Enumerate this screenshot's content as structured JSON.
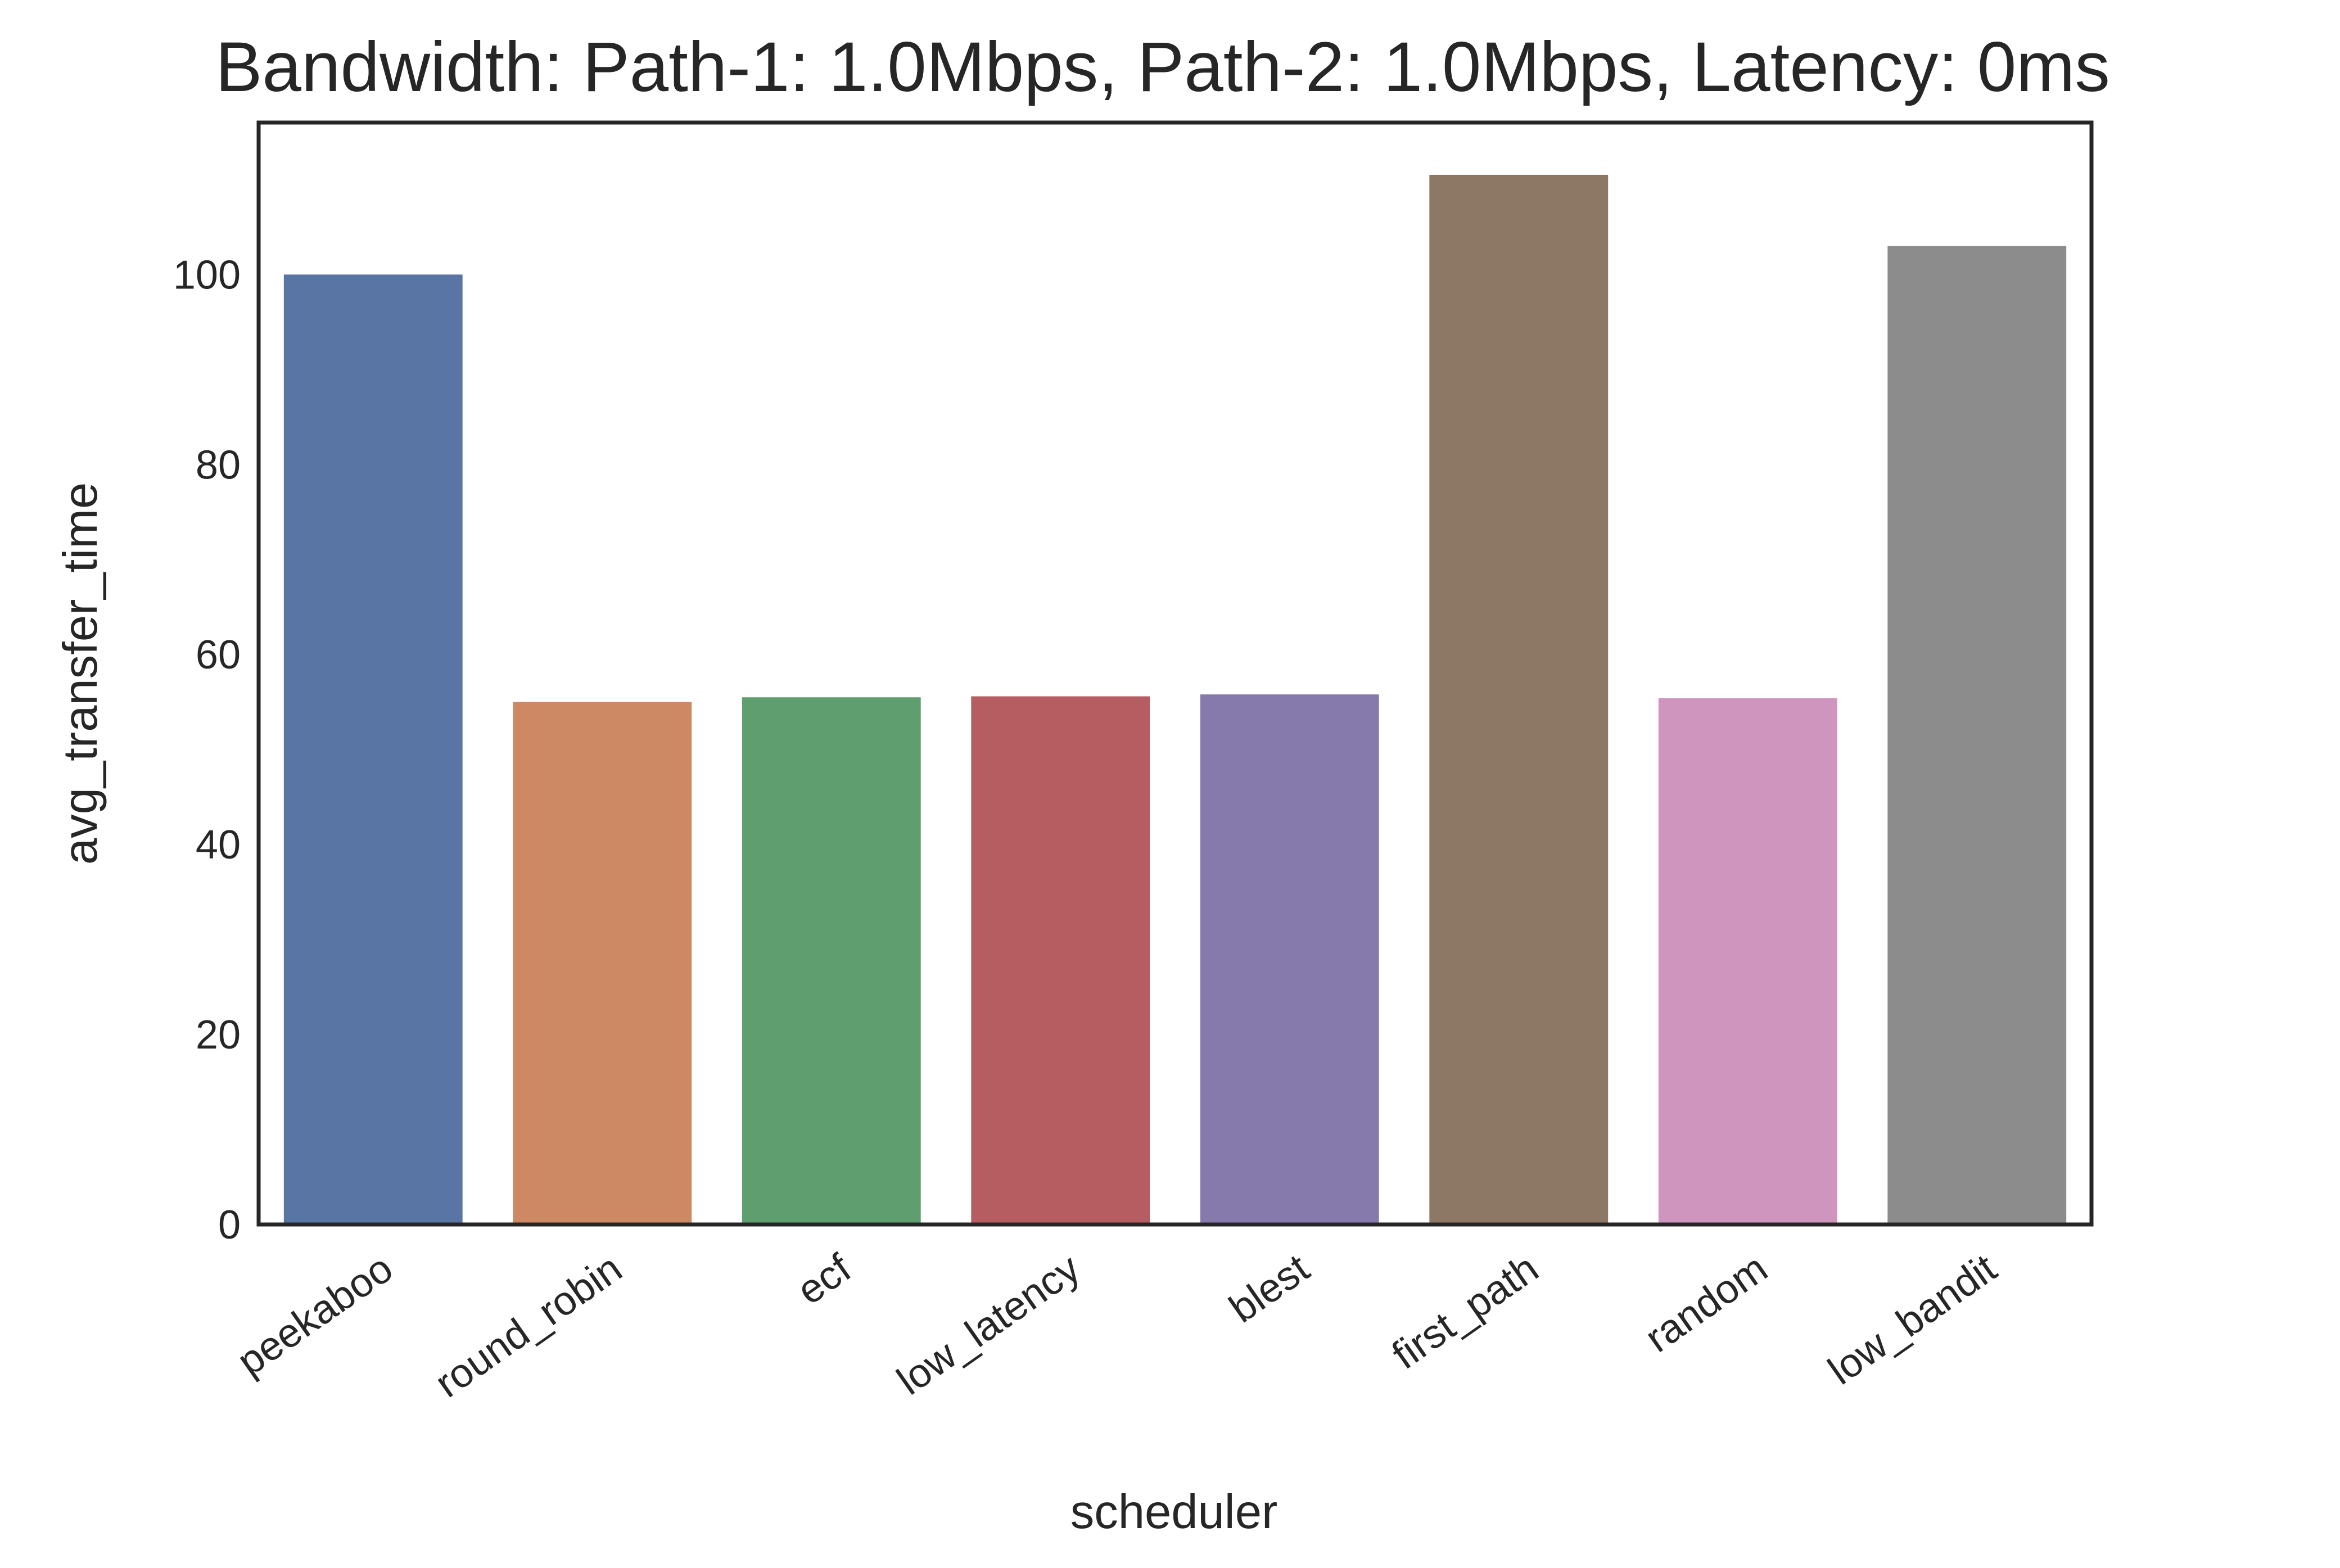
{
  "chart_data": {
    "type": "bar",
    "title": "Bandwidth: Path-1: 1.0Mbps, Path-2: 1.0Mbps, Latency: 0ms",
    "xlabel": "scheduler",
    "ylabel": "avg_transfer_time",
    "categories": [
      "peekaboo",
      "round_robin",
      "ecf",
      "low_latency",
      "blest",
      "first_path",
      "random",
      "low_bandit"
    ],
    "values": [
      100.0,
      55.0,
      55.5,
      55.6,
      55.8,
      110.5,
      55.4,
      103.0
    ],
    "colors": [
      "#5975a4",
      "#cc8963",
      "#5f9e6e",
      "#b55d60",
      "#857aab",
      "#8d7866",
      "#d095bf",
      "#8c8c8c"
    ],
    "yticks": [
      0,
      20,
      40,
      60,
      80,
      100
    ],
    "ylim": [
      0,
      116
    ],
    "grid": false,
    "legend": "none"
  }
}
